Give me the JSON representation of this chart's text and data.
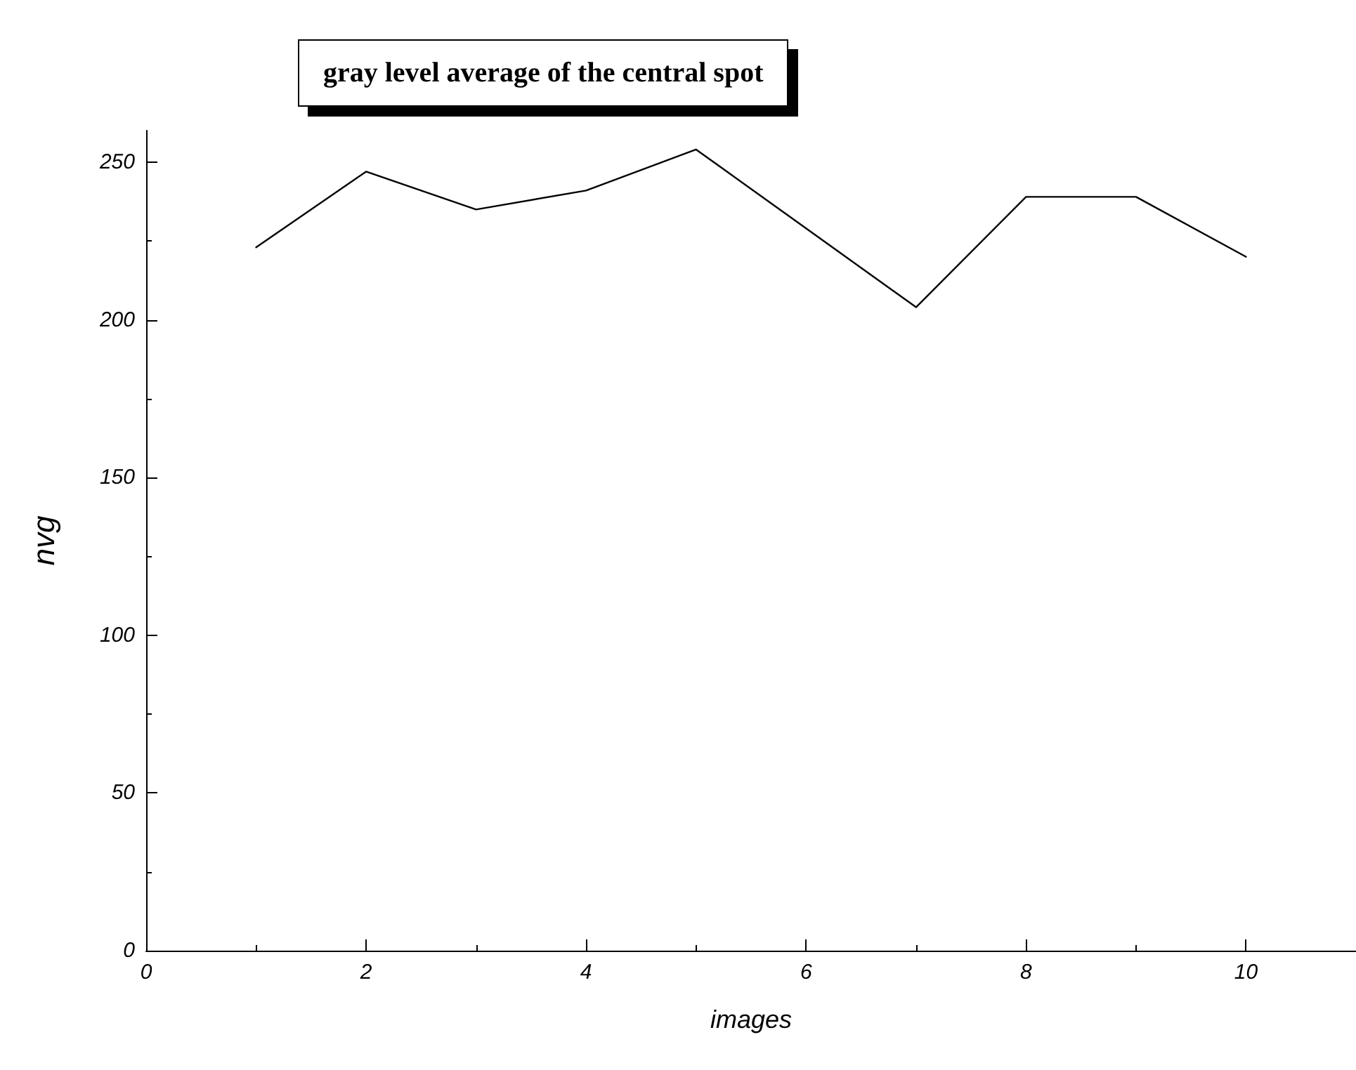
{
  "chart_data": {
    "type": "line",
    "title": "gray level average of the central spot",
    "xlabel": "images",
    "ylabel": "nvg",
    "x": [
      1,
      2,
      3,
      4,
      5,
      6,
      7,
      8,
      9,
      10
    ],
    "series": [
      {
        "color": "#000000",
        "values": [
          223,
          247,
          235,
          241,
          254,
          229,
          204,
          239,
          239,
          220
        ]
      }
    ],
    "xlim": [
      0,
      11
    ],
    "xticks": [
      0,
      2,
      4,
      6,
      8,
      10
    ],
    "ylim": [
      0,
      260
    ],
    "yticks": [
      0,
      50,
      100,
      150,
      200,
      250
    ],
    "grid": false,
    "marker": "none",
    "line_style": "solid"
  }
}
